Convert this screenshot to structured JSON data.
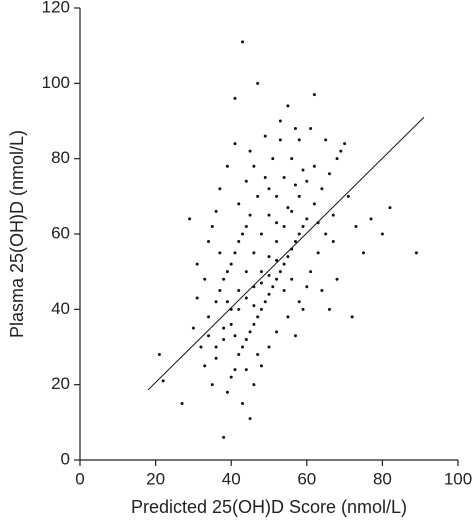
{
  "chart_data": {
    "type": "scatter",
    "x_label": "Predicted 25(OH)D Score (nmol/L)",
    "y_label": "Plasma 25(OH)D (nmol/L)",
    "xlim": [
      0,
      100
    ],
    "ylim": [
      0,
      120
    ],
    "xticks": [
      0,
      20,
      40,
      60,
      80,
      100
    ],
    "yticks": [
      0,
      20,
      40,
      60,
      80,
      100,
      120
    ],
    "color": "#111111",
    "x": [
      43,
      47,
      41,
      62,
      55,
      82,
      89,
      29,
      21,
      22,
      27,
      38,
      45,
      72,
      80,
      77,
      35,
      33,
      36,
      38,
      40,
      42,
      44,
      46,
      48,
      50,
      52,
      54,
      56,
      58,
      37,
      39,
      41,
      43,
      45,
      47,
      49,
      51,
      53,
      57,
      40,
      42,
      44,
      46,
      48,
      50,
      52,
      54,
      56,
      58,
      60,
      62,
      64,
      66,
      68,
      70,
      34,
      36,
      38,
      40,
      42,
      44,
      46,
      48,
      50,
      52,
      54,
      56,
      58,
      60,
      62,
      39,
      41,
      43,
      45,
      47,
      49,
      51,
      53,
      55,
      57,
      59,
      61,
      63,
      65,
      67,
      32,
      34,
      36,
      38,
      40,
      42,
      44,
      46,
      48,
      50,
      52,
      54,
      56,
      58,
      60,
      37,
      39,
      41,
      45,
      49,
      53,
      61,
      65,
      69,
      71,
      73,
      75,
      64,
      66,
      68,
      43,
      46,
      48,
      50,
      52,
      55,
      57,
      59,
      47,
      44,
      41,
      39,
      37,
      35,
      33,
      31,
      30,
      31,
      34,
      36,
      42,
      44,
      46,
      50,
      52,
      55,
      57,
      59,
      63,
      67
    ],
    "y": [
      111,
      100,
      96,
      97,
      94,
      67,
      55,
      64,
      28,
      21,
      15,
      6,
      11,
      38,
      60,
      64,
      20,
      25,
      30,
      35,
      40,
      45,
      50,
      55,
      60,
      65,
      70,
      75,
      80,
      85,
      45,
      50,
      55,
      60,
      65,
      70,
      75,
      80,
      85,
      88,
      22,
      28,
      32,
      36,
      40,
      44,
      48,
      52,
      56,
      60,
      64,
      68,
      72,
      76,
      80,
      84,
      38,
      42,
      48,
      52,
      58,
      62,
      46,
      50,
      54,
      58,
      62,
      66,
      70,
      74,
      78,
      18,
      24,
      30,
      34,
      38,
      42,
      46,
      50,
      54,
      58,
      62,
      50,
      55,
      60,
      65,
      30,
      33,
      27,
      32,
      36,
      40,
      43,
      41,
      47,
      49,
      53,
      45,
      48,
      42,
      46,
      72,
      78,
      84,
      82,
      86,
      90,
      88,
      85,
      82,
      70,
      62,
      55,
      45,
      40,
      48,
      15,
      20,
      25,
      30,
      34,
      38,
      33,
      40,
      28,
      24,
      33,
      42,
      55,
      62,
      48,
      43,
      35,
      52,
      58,
      66,
      68,
      74,
      78,
      72,
      63,
      67,
      73,
      77,
      63,
      58
    ],
    "fit_line": {
      "x": [
        18,
        91
      ],
      "y": [
        18.6,
        91
      ]
    }
  }
}
